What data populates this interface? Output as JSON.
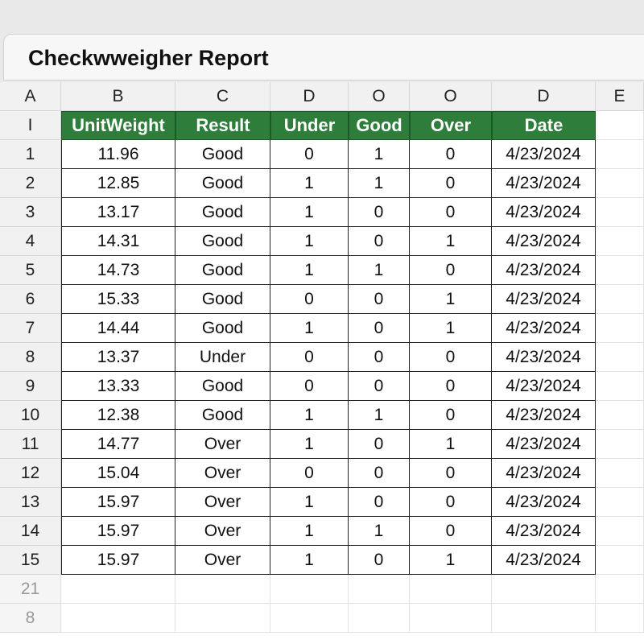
{
  "title": "Checkwweigher Report",
  "column_letters": [
    "A",
    "B",
    "C",
    "D",
    "O",
    "O",
    "D",
    "E"
  ],
  "header_row_label": "I",
  "headers": [
    "UnitWeight",
    "Result",
    "Under",
    "Good",
    "Over",
    "Date"
  ],
  "rows": [
    {
      "label": "1",
      "cells": [
        "11.96",
        "Good",
        "0",
        "1",
        "0",
        "4/23/2024"
      ]
    },
    {
      "label": "2",
      "cells": [
        "12.85",
        "Good",
        "1",
        "1",
        "0",
        "4/23/2024"
      ]
    },
    {
      "label": "3",
      "cells": [
        "13.17",
        "Good",
        "1",
        "0",
        "0",
        "4/23/2024"
      ]
    },
    {
      "label": "4",
      "cells": [
        "14.31",
        "Good",
        "1",
        "0",
        "1",
        "4/23/2024"
      ]
    },
    {
      "label": "5",
      "cells": [
        "14.73",
        "Good",
        "1",
        "1",
        "0",
        "4/23/2024"
      ]
    },
    {
      "label": "6",
      "cells": [
        "15.33",
        "Good",
        "0",
        "0",
        "1",
        "4/23/2024"
      ]
    },
    {
      "label": "7",
      "cells": [
        "14.44",
        "Good",
        "1",
        "0",
        "1",
        "4/23/2024"
      ]
    },
    {
      "label": "8",
      "cells": [
        "13.37",
        "Under",
        "0",
        "0",
        "0",
        "4/23/2024"
      ]
    },
    {
      "label": "9",
      "cells": [
        "13.33",
        "Good",
        "0",
        "0",
        "0",
        "4/23/2024"
      ]
    },
    {
      "label": "10",
      "cells": [
        "12.38",
        "Good",
        "1",
        "1",
        "0",
        "4/23/2024"
      ]
    },
    {
      "label": "11",
      "cells": [
        "14.77",
        "Over",
        "1",
        "0",
        "1",
        "4/23/2024"
      ]
    },
    {
      "label": "12",
      "cells": [
        "15.04",
        "Over",
        "0",
        "0",
        "0",
        "4/23/2024"
      ]
    },
    {
      "label": "13",
      "cells": [
        "15.97",
        "Over",
        "1",
        "0",
        "0",
        "4/23/2024"
      ]
    },
    {
      "label": "14",
      "cells": [
        "15.97",
        "Over",
        "1",
        "1",
        "0",
        "4/23/2024"
      ]
    },
    {
      "label": "15",
      "cells": [
        "15.97",
        "Over",
        "1",
        "0",
        "1",
        "4/23/2024"
      ]
    }
  ],
  "trailing_row_labels": [
    "21",
    "8"
  ],
  "colors": {
    "header_green": "#2e7d3b"
  }
}
